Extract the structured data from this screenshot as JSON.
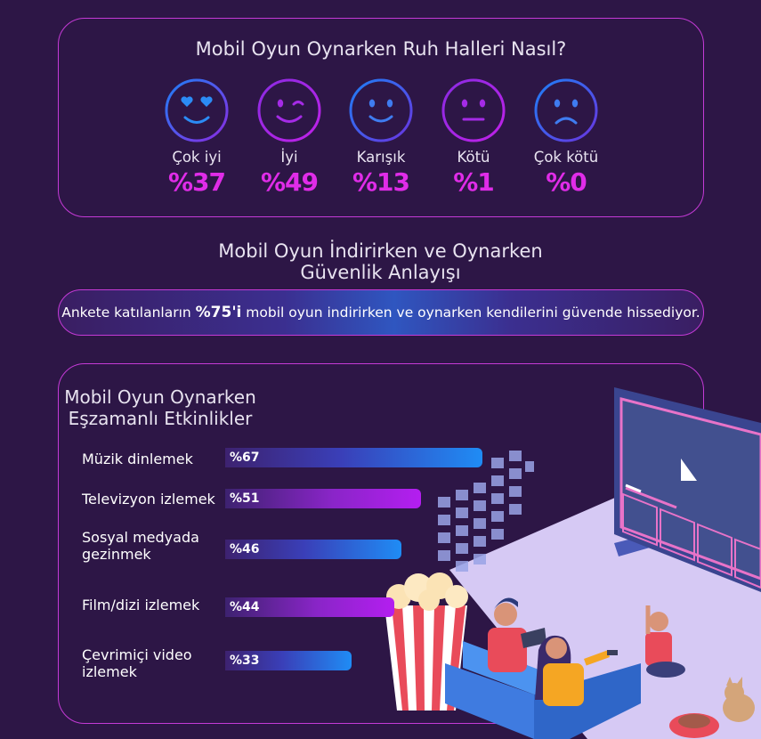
{
  "moods": {
    "title": "Mobil Oyun Oynarken Ruh Halleri Nasıl?",
    "items": [
      {
        "label": "Çok iyi",
        "value": "%37",
        "face": "heart-eyes-face-icon"
      },
      {
        "label": "İyi",
        "value": "%49",
        "face": "winking-face-icon"
      },
      {
        "label": "Karışık",
        "value": "%13",
        "face": "smiling-face-icon"
      },
      {
        "label": "Kötü",
        "value": "%1",
        "face": "neutral-face-icon"
      },
      {
        "label": "Çok kötü",
        "value": "%0",
        "face": "sad-face-icon"
      }
    ]
  },
  "safety": {
    "title_line1": "Mobil Oyun İndirirken ve Oynarken",
    "title_line2": "Güvenlik Anlayışı",
    "text_before": "Ankete katılanların ",
    "highlight": "%75'i",
    "text_after": " mobil oyun indirirken ve oynarken kendilerini güvende hissediyor."
  },
  "activities": {
    "title_line1": "Mobil Oyun Oynarken",
    "title_line2": "Eşzamanlı Etkinlikler"
  },
  "chart_data": {
    "type": "bar",
    "orientation": "horizontal",
    "title": "Mobil Oyun Oynarken Eşzamanlı Etkinlikler",
    "unit": "%",
    "categories": [
      "Müzik dinlemek",
      "Televizyon izlemek",
      "Sosyal medyada gezinmek",
      "Film/dizi izlemek",
      "Çevrimiçi video izlemek"
    ],
    "labels": [
      "%67",
      "%51",
      "%46",
      "%44",
      "%33"
    ],
    "values": [
      67,
      51,
      46,
      44,
      33
    ],
    "xlim": [
      0,
      100
    ]
  },
  "colors": {
    "background": "#2d1646",
    "accent_magenta": "#e02ce8",
    "border": "#c43ad6",
    "bar_blue": "#1f8cf5",
    "bar_purple": "#b41ef0"
  }
}
